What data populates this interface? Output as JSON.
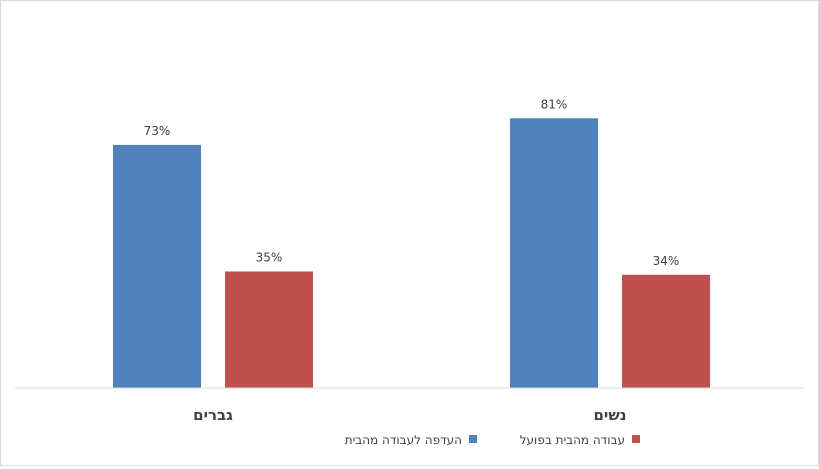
{
  "chart_data": {
    "type": "bar",
    "categories": [
      "גברים",
      "נשים"
    ],
    "series": [
      {
        "name": "העדפה לעבודה מהבית",
        "values": [
          73,
          81
        ],
        "color": "#4f81bd"
      },
      {
        "name": "עבודה מהבית בפועל",
        "values": [
          35,
          34
        ],
        "color": "#c0504d"
      }
    ],
    "data_labels": [
      [
        "73%",
        "81%"
      ],
      [
        "35%",
        "34%"
      ]
    ],
    "ylim": [
      0,
      100
    ],
    "grid": false,
    "legend_position": "bottom",
    "title": "",
    "xlabel": "",
    "ylabel": ""
  }
}
